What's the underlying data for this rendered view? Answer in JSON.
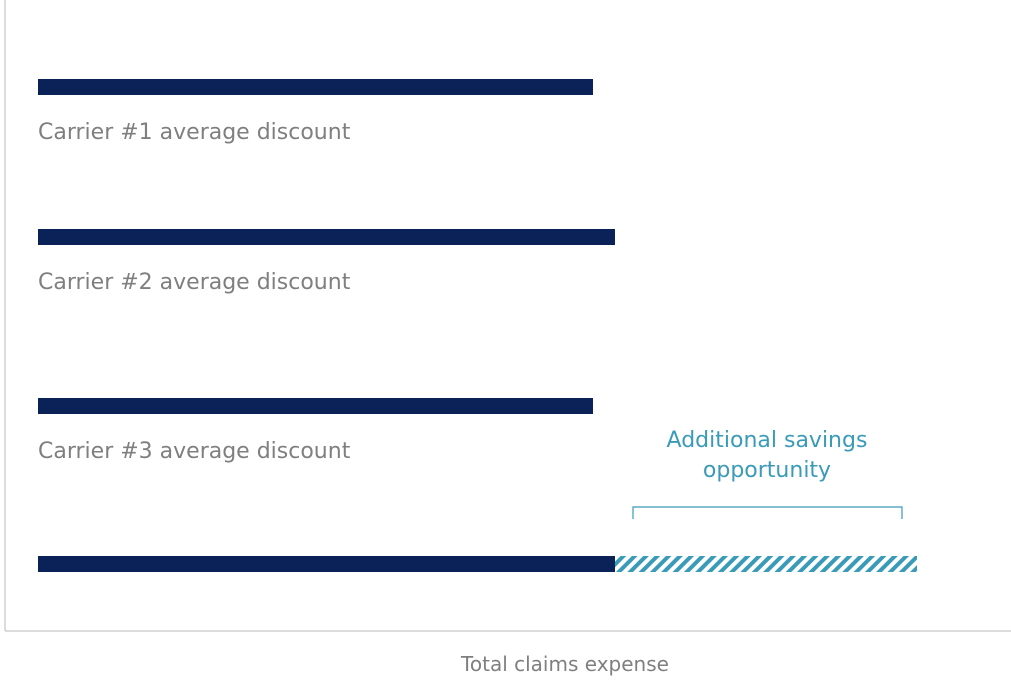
{
  "chart_data": {
    "type": "bar",
    "orientation": "horizontal",
    "xlabel": "Total claims expense",
    "ylabel": "",
    "grid": false,
    "categories": [
      "Carrier #1 average discount",
      "Carrier #2 average discount",
      "Carrier #3 average discount",
      ""
    ],
    "values": [
      555,
      577,
      555,
      577
    ],
    "extra_segment": {
      "category_index": 3,
      "value": 302,
      "pattern": "diagonal-hatch"
    },
    "annotation": {
      "line1": "Additional savings",
      "line2": "opportunity"
    },
    "xlim": [
      0,
      970
    ],
    "colors": {
      "bar": "#0b2258",
      "hatch": "#3a9bb8",
      "annotation": "#3a9bb8",
      "label": "#7f7f7f",
      "axis": "#d0d0d0"
    }
  }
}
